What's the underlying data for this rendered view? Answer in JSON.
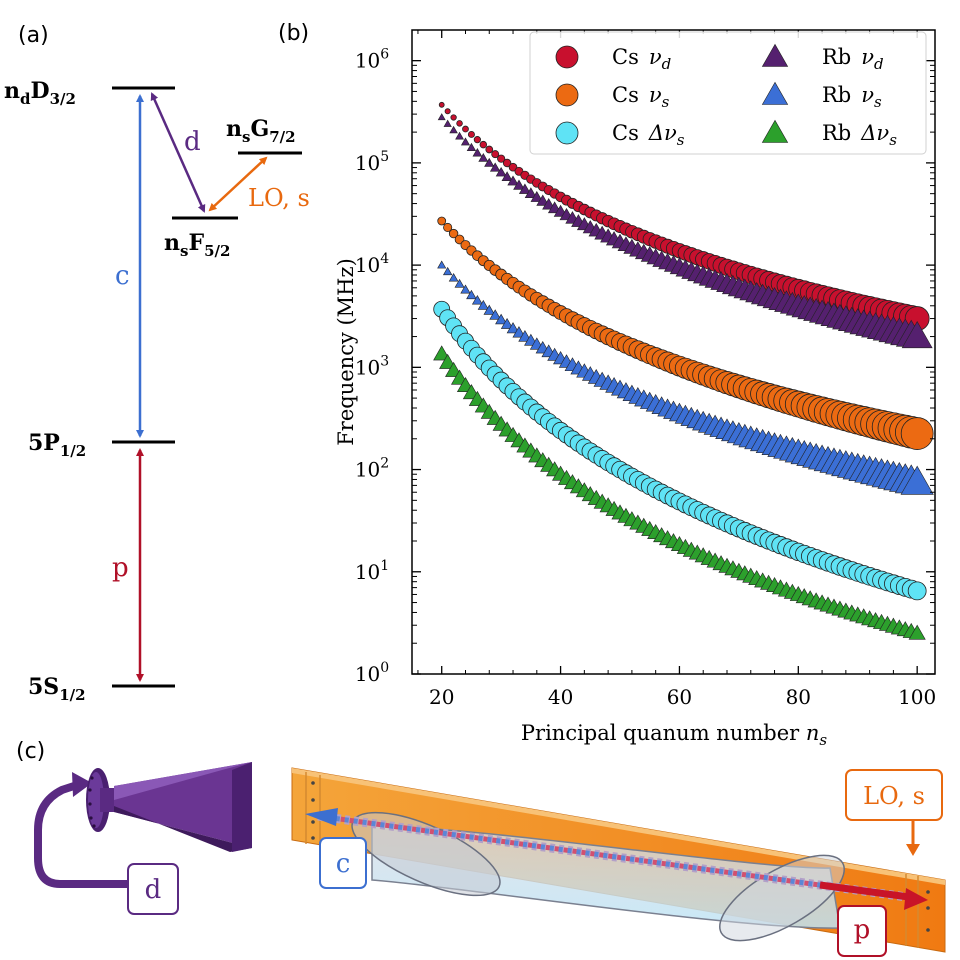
{
  "panel_labels": {
    "a": "(a)",
    "b": "(b)",
    "c": "(c)"
  },
  "colors": {
    "red": "#b01028",
    "blue": "#3c6fd0",
    "purple": "#5a2a82",
    "orange": "#e8690f",
    "cyan": "#5fe0f5",
    "green": "#2ea82e",
    "dark_red": "#c81428"
  },
  "level_diagram": {
    "levels": {
      "nd": {
        "main": "n",
        "sub1": "d",
        "mid": "D",
        "sub2": "3/2"
      },
      "ns": {
        "main": "n",
        "sub1": "s",
        "mid": "F",
        "sub2": "5/2"
      },
      "ng": {
        "main": "n",
        "sub1": "s",
        "mid": "G",
        "sub2": "7/2"
      },
      "p12": {
        "main": "5P",
        "sub2": "1/2"
      },
      "s12": {
        "main": "5S",
        "sub2": "1/2"
      }
    },
    "transitions": {
      "d": "d",
      "lo": "LO, s",
      "c": "c",
      "p": "p"
    }
  },
  "chart_data": {
    "type": "scatter",
    "title": "",
    "xlabel": "Principal quanum number n_s",
    "xlabel_main": "Principal quanum number ",
    "xlabel_var": "n",
    "xlabel_sub": "s",
    "ylabel": "Frequency (MHz)",
    "xlim": [
      15,
      103
    ],
    "ylim_log10": [
      0,
      6.3
    ],
    "x_ticks": [
      20,
      40,
      60,
      80,
      100
    ],
    "y_ticks": [
      {
        "exp": 0,
        "base": "10",
        "sup": "0"
      },
      {
        "exp": 1,
        "base": "10",
        "sup": "1"
      },
      {
        "exp": 2,
        "base": "10",
        "sup": "2"
      },
      {
        "exp": 3,
        "base": "10",
        "sup": "3"
      },
      {
        "exp": 4,
        "base": "10",
        "sup": "4"
      },
      {
        "exp": 5,
        "base": "10",
        "sup": "5"
      },
      {
        "exp": 6,
        "base": "10",
        "sup": "6"
      }
    ],
    "x_range": [
      20,
      100
    ],
    "series": [
      {
        "key": "cs_nud",
        "name": "Cs ν_d",
        "atom": "Cs",
        "sym": "ν",
        "sub": "d",
        "marker": "circle",
        "color": "#c8102e",
        "value_at_20": 370000,
        "value_at_100": 3000,
        "size_at_20": 2.5,
        "size_at_100": 12
      },
      {
        "key": "cs_nus",
        "name": "Cs ν_s",
        "atom": "Cs",
        "sym": "ν",
        "sub": "s",
        "marker": "circle",
        "color": "#ec6a12",
        "value_at_20": 27000,
        "value_at_100": 225,
        "size_at_20": 4,
        "size_at_100": 16
      },
      {
        "key": "cs_dnus",
        "name": "Cs Δν_s",
        "atom": "Cs",
        "sym": "Δν",
        "sub": "s",
        "marker": "circle",
        "color": "#5fe3f5",
        "value_at_20": 3700,
        "value_at_100": 6.5,
        "size_at_20": 8,
        "size_at_100": 9
      },
      {
        "key": "rb_nud",
        "name": "Rb ν_d",
        "atom": "Rb",
        "sym": "ν",
        "sub": "d",
        "marker": "triangle",
        "color": "#55206f",
        "value_at_20": 280000,
        "value_at_100": 2000,
        "size_at_20": 3,
        "size_at_100": 13
      },
      {
        "key": "rb_nus",
        "name": "Rb ν_s",
        "atom": "Rb",
        "sym": "ν",
        "sub": "s",
        "marker": "triangle",
        "color": "#3b6fd6",
        "value_at_20": 10000,
        "value_at_100": 75,
        "size_at_20": 3.5,
        "size_at_100": 14
      },
      {
        "key": "rb_dnus",
        "name": "Rb Δν_s",
        "atom": "Rb",
        "sym": "Δν",
        "sub": "s",
        "marker": "triangle",
        "color": "#2ca02c",
        "value_at_20": 1350,
        "value_at_100": 2.5,
        "size_at_20": 7,
        "size_at_100": 7
      }
    ],
    "legend": {
      "position": "top-right",
      "entries": [
        {
          "series": "cs_nud",
          "atom": "Cs",
          "sym": "ν",
          "sub": "d"
        },
        {
          "series": "rb_nud",
          "atom": "Rb",
          "sym": "ν",
          "sub": "d"
        },
        {
          "series": "cs_nus",
          "atom": "Cs",
          "sym": "ν",
          "sub": "s"
        },
        {
          "series": "rb_nus",
          "atom": "Rb",
          "sym": "ν",
          "sub": "s"
        },
        {
          "series": "cs_dnus",
          "atom": "Cs",
          "sym": "Δν",
          "sub": "s"
        },
        {
          "series": "rb_dnus",
          "atom": "Rb",
          "sym": "Δν",
          "sub": "s"
        }
      ]
    }
  },
  "apparatus": {
    "labels": {
      "d": "d",
      "c": "c",
      "lo": "LO, s",
      "p": "p"
    },
    "icons": [
      "horn-antenna-icon",
      "vapor-cell-icon",
      "curved-arrow-icon"
    ]
  }
}
